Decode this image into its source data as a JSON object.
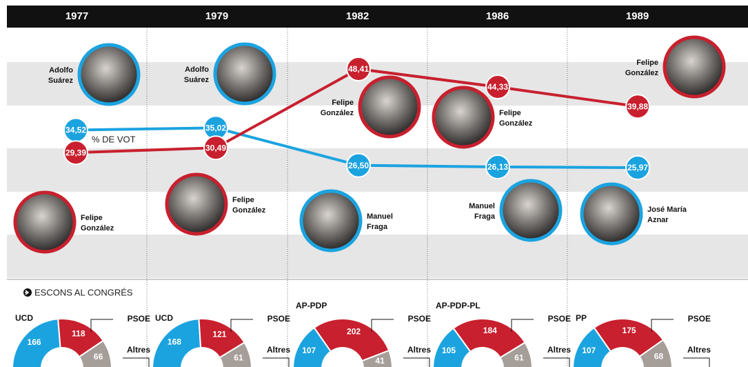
{
  "chart_data": [
    {
      "type": "line",
      "annotation": "% DE VOT",
      "categories": [
        "1977",
        "1979",
        "1982",
        "1986",
        "1989"
      ],
      "ylim": [
        0,
        55
      ],
      "series": [
        {
          "color": "#1ba3e0",
          "values": [
            34.52,
            35.02,
            26.5,
            26.13,
            25.97
          ],
          "value_labels": [
            "34,52",
            "35,02",
            "26,50",
            "26,13",
            "25,97"
          ]
        },
        {
          "color": "#c8202e",
          "values": [
            29.39,
            30.49,
            48.41,
            44.33,
            39.88
          ],
          "value_labels": [
            "29,39",
            "30,49",
            "48,41",
            "44,33",
            "39,88"
          ]
        }
      ]
    },
    {
      "type": "pie",
      "categories": [
        "UCD",
        "PSOE",
        "Altres"
      ],
      "values": [
        166,
        118,
        66
      ],
      "colors": [
        "#1ba3e0",
        "#c8202e",
        "#a59e99"
      ]
    },
    {
      "type": "pie",
      "categories": [
        "UCD",
        "PSOE",
        "Altres"
      ],
      "values": [
        168,
        121,
        61
      ],
      "colors": [
        "#1ba3e0",
        "#c8202e",
        "#a59e99"
      ]
    },
    {
      "type": "pie",
      "categories": [
        "AP-PDP",
        "PSOE",
        "Altres"
      ],
      "values": [
        107,
        202,
        41
      ],
      "colors": [
        "#1ba3e0",
        "#c8202e",
        "#a59e99"
      ]
    },
    {
      "type": "pie",
      "categories": [
        "AP-PDP-PL",
        "PSOE",
        "Altres"
      ],
      "values": [
        105,
        184,
        61
      ],
      "colors": [
        "#1ba3e0",
        "#c8202e",
        "#a59e99"
      ]
    },
    {
      "type": "pie",
      "categories": [
        "PP",
        "PSOE",
        "Altres"
      ],
      "values": [
        107,
        175,
        68
      ],
      "colors": [
        "#1ba3e0",
        "#c8202e",
        "#a59e99"
      ]
    }
  ],
  "section_label": "ESCONS AL CONGRÉS",
  "portraits": [
    {
      "name": [
        "Adolfo",
        "Suárez"
      ],
      "color": "#1ba3e0"
    },
    {
      "name": [
        "Felipe",
        "González"
      ],
      "color": "#c8202e"
    },
    {
      "name": [
        "Adolfo",
        "Suárez"
      ],
      "color": "#1ba3e0"
    },
    {
      "name": [
        "Felipe",
        "González"
      ],
      "color": "#c8202e"
    },
    {
      "name": [
        "Felipe",
        "González"
      ],
      "color": "#c8202e"
    },
    {
      "name": [
        "Manuel",
        "Fraga"
      ],
      "color": "#1ba3e0"
    },
    {
      "name": [
        "Felipe",
        "González"
      ],
      "color": "#c8202e"
    },
    {
      "name": [
        "Manuel",
        "Fraga"
      ],
      "color": "#1ba3e0"
    },
    {
      "name": [
        "Felipe",
        "González"
      ],
      "color": "#c8202e"
    },
    {
      "name": [
        "José María",
        "Aznar"
      ],
      "color": "#1ba3e0"
    }
  ]
}
